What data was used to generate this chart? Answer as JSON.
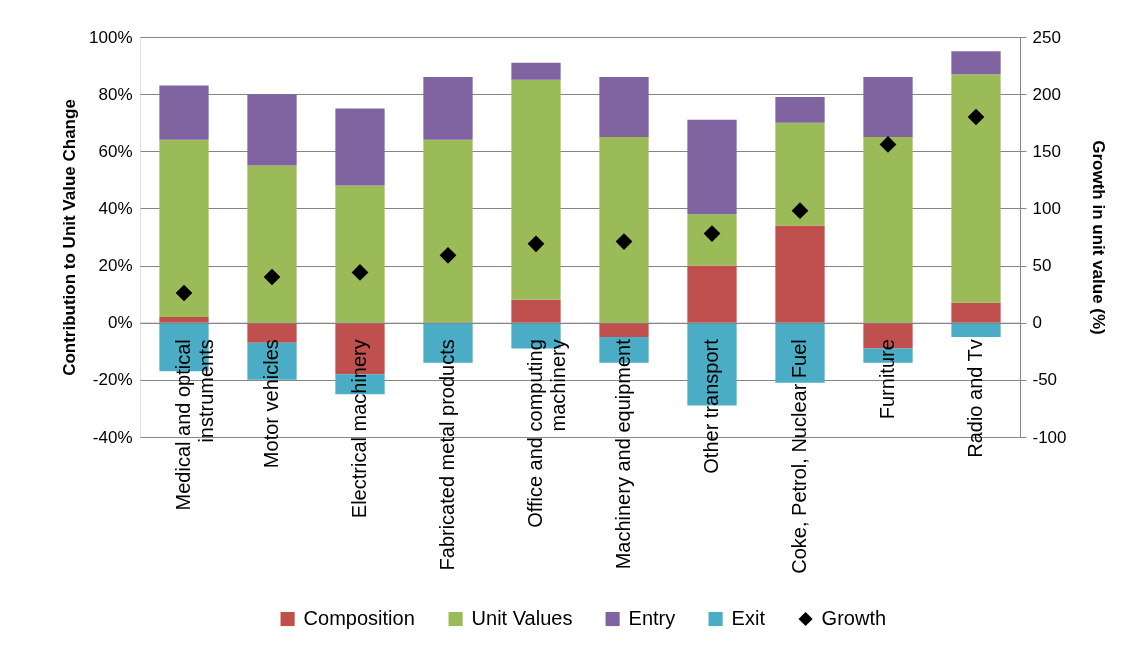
{
  "chart_data": {
    "type": "bar",
    "stacked": true,
    "categories": [
      "Medical and optical instruments",
      "Motor vehicles",
      "Electrical machinery",
      "Fabricated metal products",
      "Office and computing machinery",
      "Machinery and equipment",
      "Other transport",
      "Coke, Petrol, Nuclear Fuel",
      "Furniture",
      "Radio and Tv"
    ],
    "series": [
      {
        "name": "Composition",
        "color": "#c0504d",
        "values": [
          2,
          -7,
          -18,
          0,
          8,
          -5,
          20,
          34,
          -9,
          7
        ]
      },
      {
        "name": "Unit Values",
        "color": "#9bbb59",
        "values": [
          62,
          55,
          48,
          64,
          77,
          65,
          18,
          36,
          65,
          80
        ]
      },
      {
        "name": "Entry",
        "color": "#8064a2",
        "values": [
          19,
          25,
          27,
          22,
          6,
          21,
          33,
          9,
          21,
          8
        ]
      },
      {
        "name": "Exit",
        "color": "#4bacc6",
        "values": [
          -17,
          -13,
          -7,
          -14,
          -9,
          -9,
          -29,
          -21,
          -5,
          -5
        ]
      },
      {
        "name": "Growth",
        "type": "scatter",
        "axis": "y2",
        "marker": "diamond",
        "color": "#000000",
        "values": [
          26,
          40,
          44,
          59,
          69,
          71,
          78,
          98,
          156,
          180
        ]
      }
    ],
    "ylabel": "Contribution to Unit Value Change",
    "y2label": "Growth in unit value (%)",
    "ylim": [
      -40,
      100
    ],
    "yticks": [
      {
        "value": -40,
        "label": "-40%"
      },
      {
        "value": -20,
        "label": "-20%"
      },
      {
        "value": 0,
        "label": "0%"
      },
      {
        "value": 20,
        "label": "20%"
      },
      {
        "value": 40,
        "label": "40%"
      },
      {
        "value": 60,
        "label": "60%"
      },
      {
        "value": 80,
        "label": "80%"
      },
      {
        "value": 100,
        "label": "100%"
      }
    ],
    "y2lim": [
      -100,
      250
    ],
    "y2ticks": [
      -100,
      -50,
      0,
      50,
      100,
      150,
      200,
      250
    ],
    "grid": "y",
    "legend": "bottom"
  }
}
